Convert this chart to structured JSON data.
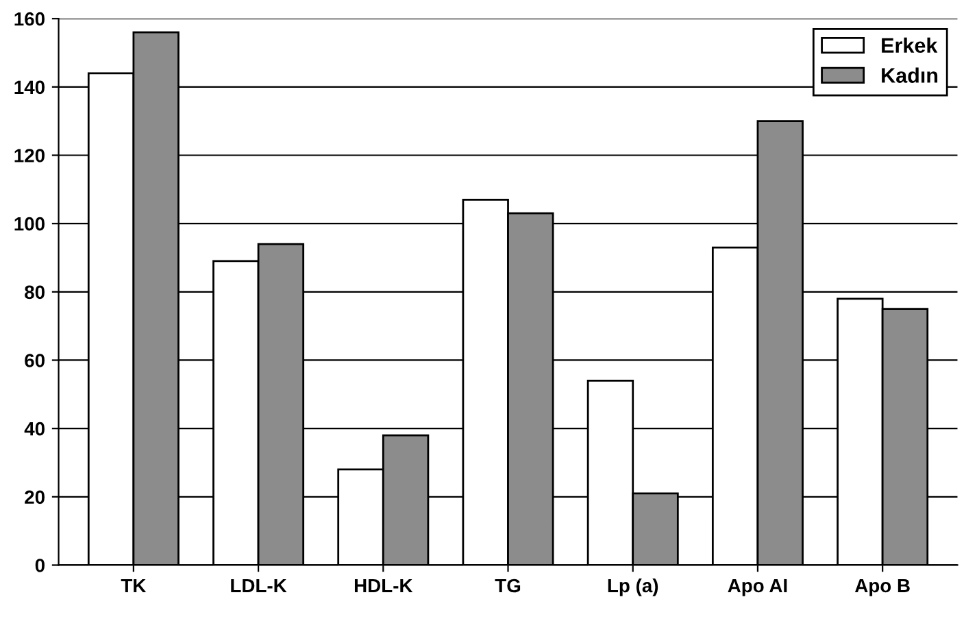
{
  "chart_data": {
    "type": "bar",
    "categories": [
      "TK",
      "LDL-K",
      "HDL-K",
      "TG",
      "Lp (a)",
      "Apo AI",
      "Apo B"
    ],
    "series": [
      {
        "name": "Erkek",
        "color": "#ffffff",
        "values": [
          144,
          89,
          28,
          107,
          54,
          93,
          78
        ]
      },
      {
        "name": "Kadın",
        "color": "#8c8c8c",
        "values": [
          156,
          94,
          38,
          103,
          21,
          130,
          75
        ]
      }
    ],
    "ylim": [
      0,
      160
    ],
    "yticks": [
      0,
      20,
      40,
      60,
      80,
      100,
      120,
      140,
      160
    ],
    "grid": "y",
    "legend": "top right"
  }
}
